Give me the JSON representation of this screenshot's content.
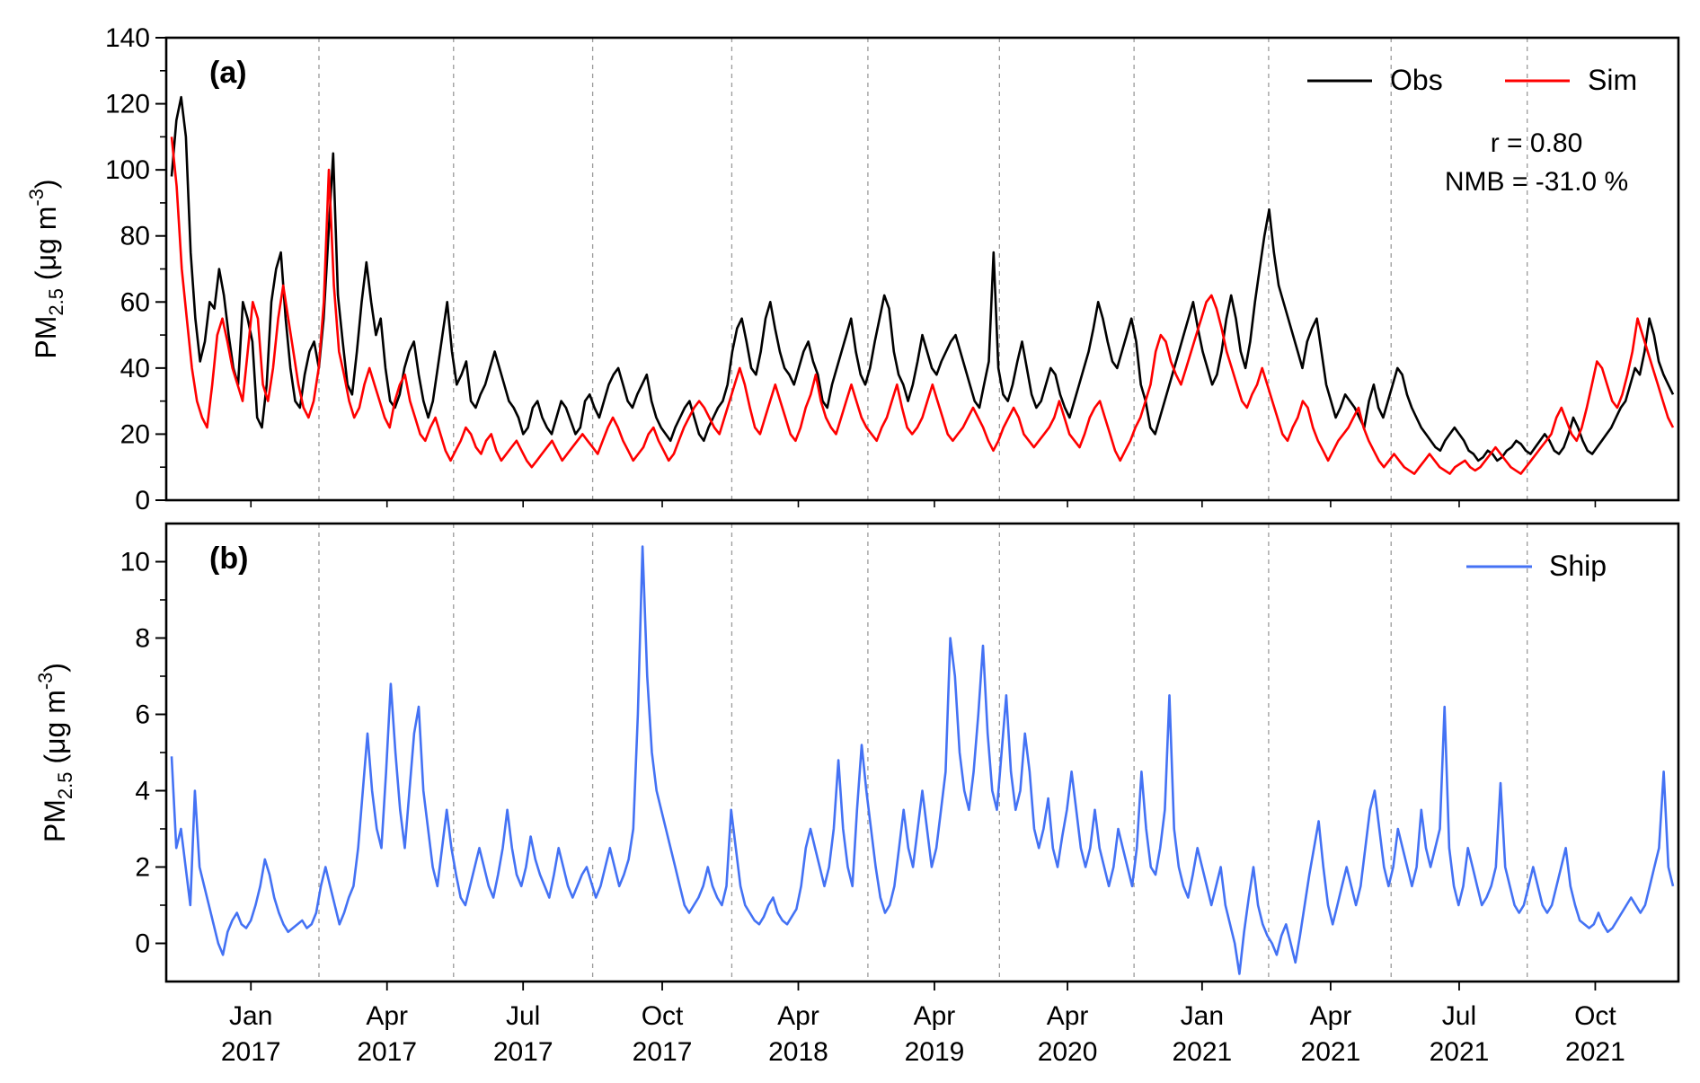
{
  "chart_data": [
    {
      "type": "line",
      "panel_label": "(a)",
      "ylabel": "PM2.5 (μg m-3)",
      "ylabel_parts": {
        "main": "PM",
        "sub": "2.5",
        "units": " (μg m",
        "sup": "-3",
        "close": ")"
      },
      "ylim": [
        0,
        140
      ],
      "yticks": [
        "0",
        "20",
        "40",
        "60",
        "80",
        "100",
        "120",
        "140"
      ],
      "x_axis": "time, monthly segments from Dec 2016 to Oct 2021 (5 years shown as Jan 2017, Apr 2017, Jul 2017, Oct 2017, Apr 2018, Apr 2019, Apr 2020, Jan 2021, Apr 2021, Jul 2021, Oct 2021)",
      "grid": "dashed vertical lines at segment boundaries",
      "legend_position": "top-right",
      "series": [
        {
          "name": "Obs",
          "color": "#000000",
          "x_start": 0,
          "x_end": 1,
          "values": [
            98,
            115,
            122,
            110,
            75,
            55,
            42,
            48,
            60,
            58,
            70,
            62,
            50,
            40,
            35,
            60,
            55,
            48,
            25,
            22,
            35,
            60,
            70,
            75,
            55,
            40,
            30,
            28,
            38,
            45,
            48,
            40,
            55,
            80,
            105,
            62,
            48,
            35,
            32,
            45,
            60,
            72,
            60,
            50,
            55,
            40,
            30,
            28,
            32,
            40,
            45,
            48,
            38,
            30,
            25,
            30,
            40,
            50,
            60,
            45,
            35,
            38,
            42,
            30,
            28,
            32,
            35,
            40,
            45,
            40,
            35,
            30,
            28,
            25,
            20,
            22,
            28,
            30,
            25,
            22,
            20,
            25,
            30,
            28,
            24,
            20,
            22,
            30,
            32,
            28,
            25,
            30,
            35,
            38,
            40,
            35,
            30,
            28,
            32,
            35,
            38,
            30,
            25,
            22,
            20,
            18,
            22,
            25,
            28,
            30,
            25,
            20,
            18,
            22,
            25,
            28,
            30,
            35,
            45,
            52,
            55,
            48,
            40,
            38,
            45,
            55,
            60,
            52,
            45,
            40,
            38,
            35,
            40,
            45,
            48,
            42,
            38,
            30,
            28,
            35,
            40,
            45,
            50,
            55,
            45,
            38,
            35,
            40,
            48,
            55,
            62,
            58,
            45,
            38,
            35,
            30,
            35,
            42,
            50,
            45,
            40,
            38,
            42,
            45,
            48,
            50,
            45,
            40,
            35,
            30,
            28,
            35,
            42,
            75,
            40,
            32,
            30,
            35,
            42,
            48,
            40,
            32,
            28,
            30,
            35,
            40,
            38,
            32,
            28,
            25,
            30,
            35,
            40,
            45,
            52,
            60,
            55,
            48,
            42,
            40,
            45,
            50,
            55,
            48,
            35,
            30,
            22,
            20,
            25,
            30,
            35,
            40,
            45,
            50,
            55,
            60,
            52,
            45,
            40,
            35,
            38,
            45,
            55,
            62,
            55,
            45,
            40,
            48,
            60,
            70,
            80,
            88,
            75,
            65,
            60,
            55,
            50,
            45,
            40,
            48,
            52,
            55,
            45,
            35,
            30,
            25,
            28,
            32,
            30,
            28,
            25,
            22,
            30,
            35,
            28,
            25,
            30,
            35,
            40,
            38,
            32,
            28,
            25,
            22,
            20,
            18,
            16,
            15,
            18,
            20,
            22,
            20,
            18,
            15,
            14,
            12,
            13,
            15,
            14,
            12,
            13,
            15,
            16,
            18,
            17,
            15,
            14,
            16,
            18,
            20,
            18,
            15,
            14,
            16,
            20,
            25,
            22,
            18,
            15,
            14,
            16,
            18,
            20,
            22,
            25,
            28,
            30,
            35,
            40,
            38,
            45,
            55,
            50,
            42,
            38,
            35,
            32
          ]
        },
        {
          "name": "Sim",
          "color": "#ff0000",
          "x_start": 0,
          "x_end": 1,
          "values": [
            110,
            95,
            70,
            55,
            40,
            30,
            25,
            22,
            35,
            50,
            55,
            48,
            40,
            35,
            30,
            45,
            60,
            55,
            35,
            30,
            40,
            55,
            65,
            55,
            45,
            35,
            28,
            25,
            30,
            40,
            60,
            100,
            65,
            45,
            38,
            30,
            25,
            28,
            35,
            40,
            35,
            30,
            25,
            22,
            30,
            35,
            38,
            30,
            25,
            20,
            18,
            22,
            25,
            20,
            15,
            12,
            15,
            18,
            22,
            20,
            16,
            14,
            18,
            20,
            15,
            12,
            14,
            16,
            18,
            15,
            12,
            10,
            12,
            14,
            16,
            18,
            15,
            12,
            14,
            16,
            18,
            20,
            18,
            16,
            14,
            18,
            22,
            25,
            22,
            18,
            15,
            12,
            14,
            16,
            20,
            22,
            18,
            15,
            12,
            14,
            18,
            22,
            25,
            28,
            30,
            28,
            25,
            22,
            20,
            25,
            30,
            35,
            40,
            35,
            28,
            22,
            20,
            25,
            30,
            35,
            30,
            25,
            20,
            18,
            22,
            28,
            32,
            38,
            30,
            25,
            22,
            20,
            25,
            30,
            35,
            30,
            25,
            22,
            20,
            18,
            22,
            25,
            30,
            35,
            28,
            22,
            20,
            22,
            25,
            30,
            35,
            30,
            25,
            20,
            18,
            20,
            22,
            25,
            28,
            25,
            22,
            18,
            15,
            18,
            22,
            25,
            28,
            25,
            20,
            18,
            16,
            18,
            20,
            22,
            25,
            30,
            25,
            20,
            18,
            16,
            20,
            25,
            28,
            30,
            25,
            20,
            15,
            12,
            15,
            18,
            22,
            25,
            30,
            35,
            45,
            50,
            48,
            42,
            38,
            35,
            40,
            45,
            50,
            55,
            60,
            62,
            58,
            52,
            45,
            40,
            35,
            30,
            28,
            32,
            35,
            40,
            35,
            30,
            25,
            20,
            18,
            22,
            25,
            30,
            28,
            22,
            18,
            15,
            12,
            15,
            18,
            20,
            22,
            25,
            28,
            22,
            18,
            15,
            12,
            10,
            12,
            14,
            12,
            10,
            9,
            8,
            10,
            12,
            14,
            12,
            10,
            9,
            8,
            10,
            11,
            12,
            10,
            9,
            10,
            12,
            14,
            16,
            14,
            12,
            10,
            9,
            8,
            10,
            12,
            14,
            16,
            18,
            20,
            25,
            28,
            24,
            20,
            18,
            22,
            28,
            35,
            42,
            40,
            35,
            30,
            28,
            32,
            38,
            45,
            55,
            50,
            45,
            40,
            35,
            30,
            25,
            22
          ]
        }
      ],
      "annotations": [
        "r = 0.80",
        "NMB = -31.0 %"
      ]
    },
    {
      "type": "line",
      "panel_label": "(b)",
      "ylabel": "PM2.5 (μg m-3)",
      "ylabel_parts": {
        "main": "PM",
        "sub": "2.5",
        "units": " (μg m",
        "sup": "-3",
        "close": ")"
      },
      "ylim": [
        -1,
        11
      ],
      "yticks": [
        "0",
        "2",
        "4",
        "6",
        "8",
        "10"
      ],
      "legend_position": "top-right",
      "series": [
        {
          "name": "Ship",
          "color": "#4472f4",
          "x_start": 0,
          "x_end": 1,
          "values": [
            4.9,
            2.5,
            3.0,
            2.0,
            1.0,
            4.0,
            2.0,
            1.5,
            1.0,
            0.5,
            0.0,
            -0.3,
            0.3,
            0.6,
            0.8,
            0.5,
            0.4,
            0.6,
            1.0,
            1.5,
            2.2,
            1.8,
            1.2,
            0.8,
            0.5,
            0.3,
            0.4,
            0.5,
            0.6,
            0.4,
            0.5,
            0.8,
            1.5,
            2.0,
            1.5,
            1.0,
            0.5,
            0.8,
            1.2,
            1.5,
            2.5,
            4.0,
            5.5,
            4.0,
            3.0,
            2.5,
            4.5,
            6.8,
            5.0,
            3.5,
            2.5,
            4.0,
            5.5,
            6.2,
            4.0,
            3.0,
            2.0,
            1.5,
            2.5,
            3.5,
            2.5,
            1.8,
            1.2,
            1.0,
            1.5,
            2.0,
            2.5,
            2.0,
            1.5,
            1.2,
            1.8,
            2.5,
            3.5,
            2.5,
            1.8,
            1.5,
            2.0,
            2.8,
            2.2,
            1.8,
            1.5,
            1.2,
            1.8,
            2.5,
            2.0,
            1.5,
            1.2,
            1.5,
            1.8,
            2.0,
            1.6,
            1.2,
            1.5,
            2.0,
            2.5,
            2.0,
            1.5,
            1.8,
            2.2,
            3.0,
            6.0,
            10.4,
            7.0,
            5.0,
            4.0,
            3.5,
            3.0,
            2.5,
            2.0,
            1.5,
            1.0,
            0.8,
            1.0,
            1.2,
            1.5,
            2.0,
            1.5,
            1.2,
            1.0,
            1.5,
            3.5,
            2.5,
            1.5,
            1.0,
            0.8,
            0.6,
            0.5,
            0.7,
            1.0,
            1.2,
            0.8,
            0.6,
            0.5,
            0.7,
            0.9,
            1.5,
            2.5,
            3.0,
            2.5,
            2.0,
            1.5,
            2.0,
            3.0,
            4.8,
            3.0,
            2.0,
            1.5,
            3.5,
            5.2,
            4.0,
            3.0,
            2.0,
            1.2,
            0.8,
            1.0,
            1.5,
            2.5,
            3.5,
            2.5,
            2.0,
            3.0,
            4.0,
            3.0,
            2.0,
            2.5,
            3.5,
            4.5,
            8.0,
            7.0,
            5.0,
            4.0,
            3.5,
            4.5,
            6.0,
            7.8,
            5.5,
            4.0,
            3.5,
            5.0,
            6.5,
            4.5,
            3.5,
            4.0,
            5.5,
            4.5,
            3.0,
            2.5,
            3.0,
            3.8,
            2.5,
            2.0,
            2.8,
            3.5,
            4.5,
            3.5,
            2.5,
            2.0,
            2.5,
            3.5,
            2.5,
            2.0,
            1.5,
            2.0,
            3.0,
            2.5,
            2.0,
            1.5,
            2.5,
            4.5,
            3.0,
            2.0,
            1.8,
            2.5,
            3.5,
            6.5,
            3.0,
            2.0,
            1.5,
            1.2,
            1.8,
            2.5,
            2.0,
            1.5,
            1.0,
            1.5,
            2.0,
            1.0,
            0.5,
            0.0,
            -0.8,
            0.3,
            1.2,
            2.0,
            1.0,
            0.5,
            0.2,
            0.0,
            -0.3,
            0.2,
            0.5,
            0.0,
            -0.5,
            0.2,
            1.0,
            1.8,
            2.5,
            3.2,
            2.0,
            1.0,
            0.5,
            1.0,
            1.5,
            2.0,
            1.5,
            1.0,
            1.5,
            2.5,
            3.5,
            4.0,
            3.0,
            2.0,
            1.5,
            2.0,
            3.0,
            2.5,
            2.0,
            1.5,
            2.0,
            3.5,
            2.5,
            2.0,
            2.5,
            3.0,
            6.2,
            2.5,
            1.5,
            1.0,
            1.5,
            2.5,
            2.0,
            1.5,
            1.0,
            1.2,
            1.5,
            2.0,
            4.2,
            2.0,
            1.5,
            1.0,
            0.8,
            1.0,
            1.5,
            2.0,
            1.5,
            1.0,
            0.8,
            1.0,
            1.5,
            2.0,
            2.5,
            1.5,
            1.0,
            0.6,
            0.5,
            0.4,
            0.5,
            0.8,
            0.5,
            0.3,
            0.4,
            0.6,
            0.8,
            1.0,
            1.2,
            1.0,
            0.8,
            1.0,
            1.5,
            2.0,
            2.5,
            4.5,
            2.0,
            1.5
          ]
        }
      ]
    }
  ],
  "x_ticks": [
    {
      "month": "Jan",
      "year": "2017"
    },
    {
      "month": "Apr",
      "year": "2017"
    },
    {
      "month": "Jul",
      "year": "2017"
    },
    {
      "month": "Oct",
      "year": "2017"
    },
    {
      "month": "Apr",
      "year": "2018"
    },
    {
      "month": "Apr",
      "year": "2019"
    },
    {
      "month": "Apr",
      "year": "2020"
    },
    {
      "month": "Jan",
      "year": "2021"
    },
    {
      "month": "Apr",
      "year": "2021"
    },
    {
      "month": "Jul",
      "year": "2021"
    },
    {
      "month": "Oct",
      "year": "2021"
    }
  ]
}
